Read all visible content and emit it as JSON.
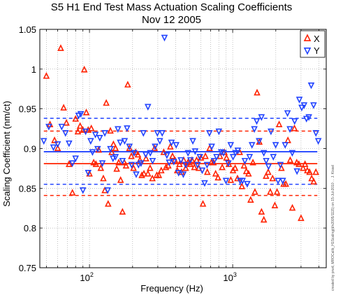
{
  "chart_data": {
    "type": "scatter",
    "title": "S5 H1 End Test Mass Actuation Scaling Coefficients",
    "subtitle": "Nov 12 2005",
    "xlabel": "Frequency (Hz)",
    "ylabel": "Scaling Coefficient (nm/ct)",
    "x_scale": "log",
    "xlim": [
      45,
      4500
    ],
    "ylim": [
      0.75,
      1.05
    ],
    "y_ticks": [
      "0.75",
      "0.8",
      "0.85",
      "0.9",
      "0.95",
      "1",
      "1.05"
    ],
    "x_ticks": [
      {
        "value": 100,
        "base": "10",
        "exp": "2"
      },
      {
        "value": 1000,
        "base": "10",
        "exp": "3"
      }
    ],
    "grid": true,
    "legend_position": "top-right",
    "side_note": "created by prwd, MROCalib_H1Scaling(d/v2005/1115) on 15-Jul-2010 ... J. Kissel",
    "series": [
      {
        "name": "X",
        "color": "#ff2200",
        "marker": "triangle-up",
        "mean": 0.881,
        "band": [
          0.841,
          0.922
        ],
        "points": [
          [
            50,
            0.991
          ],
          [
            53,
            0.93
          ],
          [
            57,
            0.91
          ],
          [
            60,
            0.9
          ],
          [
            63,
            1.026
          ],
          [
            66,
            0.951
          ],
          [
            69,
            0.932
          ],
          [
            72,
            0.88
          ],
          [
            76,
            0.844
          ],
          [
            80,
            0.937
          ],
          [
            83,
            0.921
          ],
          [
            86,
            0.928
          ],
          [
            90,
            0.923
          ],
          [
            92,
            0.999
          ],
          [
            95,
            0.945
          ],
          [
            98,
            0.923
          ],
          [
            100,
            0.868
          ],
          [
            103,
            0.925
          ],
          [
            107,
            0.882
          ],
          [
            111,
            0.88
          ],
          [
            116,
            0.898
          ],
          [
            120,
            0.875
          ],
          [
            125,
            0.862
          ],
          [
            128,
            0.847
          ],
          [
            131,
            0.957
          ],
          [
            135,
            0.83
          ],
          [
            140,
            0.922
          ],
          [
            143,
            0.895
          ],
          [
            147,
            0.905
          ],
          [
            152,
            0.9
          ],
          [
            155,
            0.874
          ],
          [
            160,
            0.882
          ],
          [
            165,
            0.86
          ],
          [
            170,
            0.82
          ],
          [
            175,
            0.882
          ],
          [
            180,
            0.878
          ],
          [
            185,
            0.98
          ],
          [
            190,
            0.9
          ],
          [
            196,
            0.89
          ],
          [
            203,
            0.875
          ],
          [
            210,
            0.895
          ],
          [
            218,
            0.892
          ],
          [
            225,
            0.885
          ],
          [
            232,
            0.866
          ],
          [
            240,
            0.868
          ],
          [
            248,
            0.887
          ],
          [
            256,
            0.868
          ],
          [
            265,
            0.875
          ],
          [
            275,
            0.862
          ],
          [
            285,
            0.9
          ],
          [
            295,
            0.866
          ],
          [
            305,
            0.866
          ],
          [
            317,
            0.872
          ],
          [
            330,
            0.895
          ],
          [
            342,
            0.876
          ],
          [
            355,
            0.878
          ],
          [
            367,
            0.902
          ],
          [
            380,
            0.89
          ],
          [
            395,
            0.885
          ],
          [
            410,
            0.872
          ],
          [
            425,
            0.88
          ],
          [
            440,
            0.87
          ],
          [
            455,
            0.885
          ],
          [
            470,
            0.875
          ],
          [
            487,
            0.882
          ],
          [
            505,
            0.88
          ],
          [
            520,
            0.885
          ],
          [
            540,
            0.876
          ],
          [
            560,
            0.885
          ],
          [
            580,
            0.875
          ],
          [
            600,
            0.888
          ],
          [
            620,
            0.83
          ],
          [
            645,
            0.89
          ],
          [
            665,
            0.87
          ],
          [
            690,
            0.9
          ],
          [
            710,
            0.882
          ],
          [
            735,
            0.882
          ],
          [
            760,
            0.868
          ],
          [
            790,
            0.863
          ],
          [
            815,
            0.89
          ],
          [
            845,
            0.876
          ],
          [
            875,
            0.895
          ],
          [
            905,
            0.888
          ],
          [
            940,
            0.88
          ],
          [
            970,
            0.86
          ],
          [
            1005,
            0.872
          ],
          [
            1040,
            0.875
          ],
          [
            1080,
            0.862
          ],
          [
            1120,
            0.895
          ],
          [
            1160,
            0.852
          ],
          [
            1200,
            0.878
          ],
          [
            1245,
            0.871
          ],
          [
            1290,
            0.868
          ],
          [
            1335,
            0.835
          ],
          [
            1385,
            0.882
          ],
          [
            1430,
            0.845
          ],
          [
            1480,
            0.97
          ],
          [
            1535,
            0.908
          ],
          [
            1590,
            0.82
          ],
          [
            1650,
            0.81
          ],
          [
            1710,
            0.865
          ],
          [
            1770,
            0.87
          ],
          [
            1830,
            0.845
          ],
          [
            1900,
            0.862
          ],
          [
            1970,
            0.828
          ],
          [
            2040,
            0.845
          ],
          [
            2110,
            0.93
          ],
          [
            2190,
            0.875
          ],
          [
            2270,
            0.855
          ],
          [
            2350,
            0.855
          ],
          [
            2430,
            0.91
          ],
          [
            2520,
            0.885
          ],
          [
            2610,
            0.825
          ],
          [
            2700,
            0.925
          ],
          [
            2800,
            0.882
          ],
          [
            2900,
            0.88
          ],
          [
            3000,
            0.812
          ],
          [
            3100,
            0.875
          ],
          [
            3200,
            0.88
          ],
          [
            3320,
            0.872
          ],
          [
            3440,
            0.87
          ],
          [
            3560,
            0.862
          ],
          [
            3680,
            0.858
          ],
          [
            3810,
            0.87
          ]
        ]
      },
      {
        "name": "Y",
        "color": "#2244ff",
        "marker": "triangle-down",
        "mean": 0.896,
        "band": [
          0.855,
          0.938
        ],
        "points": [
          [
            48,
            0.91
          ],
          [
            52,
            0.928
          ],
          [
            56,
            0.902
          ],
          [
            60,
            0.906
          ],
          [
            64,
            0.928
          ],
          [
            68,
            0.92
          ],
          [
            72,
            0.907
          ],
          [
            76,
            0.882
          ],
          [
            80,
            0.888
          ],
          [
            84,
            0.942
          ],
          [
            87,
            0.944
          ],
          [
            90,
            0.848
          ],
          [
            94,
            0.922
          ],
          [
            98,
            0.87
          ],
          [
            102,
            0.91
          ],
          [
            105,
            0.896
          ],
          [
            110,
            0.918
          ],
          [
            114,
            0.9
          ],
          [
            118,
            0.914
          ],
          [
            123,
            0.882
          ],
          [
            128,
            0.92
          ],
          [
            134,
            0.848
          ],
          [
            140,
            0.9
          ],
          [
            146,
            0.888
          ],
          [
            152,
            0.89
          ],
          [
            158,
            0.925
          ],
          [
            164,
            0.908
          ],
          [
            170,
            0.885
          ],
          [
            176,
            0.91
          ],
          [
            183,
            0.926
          ],
          [
            190,
            0.903
          ],
          [
            197,
            0.88
          ],
          [
            205,
            0.895
          ],
          [
            212,
            0.868
          ],
          [
            220,
            0.88
          ],
          [
            229,
            0.882
          ],
          [
            238,
            0.92
          ],
          [
            247,
            0.893
          ],
          [
            256,
            0.953
          ],
          [
            266,
            0.895
          ],
          [
            276,
            0.885
          ],
          [
            287,
            0.903
          ],
          [
            298,
            0.92
          ],
          [
            310,
            0.91
          ],
          [
            322,
            0.92
          ],
          [
            334,
            1.04
          ],
          [
            347,
            0.892
          ],
          [
            360,
            0.883
          ],
          [
            374,
            0.908
          ],
          [
            388,
            0.884
          ],
          [
            403,
            0.905
          ],
          [
            419,
            0.87
          ],
          [
            435,
            0.886
          ],
          [
            452,
            0.868
          ],
          [
            470,
            0.88
          ],
          [
            488,
            0.895
          ],
          [
            507,
            0.886
          ],
          [
            527,
            0.91
          ],
          [
            547,
            0.897
          ],
          [
            568,
            0.88
          ],
          [
            590,
            0.89
          ],
          [
            613,
            0.873
          ],
          [
            637,
            0.857
          ],
          [
            662,
            0.88
          ],
          [
            688,
            0.92
          ],
          [
            714,
            0.903
          ],
          [
            742,
            0.885
          ],
          [
            771,
            0.89
          ],
          [
            801,
            0.922
          ],
          [
            832,
            0.896
          ],
          [
            864,
            0.895
          ],
          [
            898,
            0.86
          ],
          [
            933,
            0.882
          ],
          [
            969,
            0.905
          ],
          [
            1006,
            0.89
          ],
          [
            1045,
            0.895
          ],
          [
            1086,
            0.898
          ],
          [
            1128,
            0.86
          ],
          [
            1172,
            0.86
          ],
          [
            1217,
            0.885
          ],
          [
            1264,
            0.856
          ],
          [
            1313,
            0.89
          ],
          [
            1364,
            0.905
          ],
          [
            1417,
            0.925
          ],
          [
            1472,
            0.935
          ],
          [
            1529,
            0.91
          ],
          [
            1589,
            0.94
          ],
          [
            1650,
            0.895
          ],
          [
            1714,
            0.885
          ],
          [
            1781,
            0.878
          ],
          [
            1850,
            0.922
          ],
          [
            1922,
            0.89
          ],
          [
            1996,
            0.905
          ],
          [
            2074,
            0.86
          ],
          [
            2154,
            0.88
          ],
          [
            2238,
            0.86
          ],
          [
            2325,
            0.905
          ],
          [
            2415,
            0.945
          ],
          [
            2509,
            0.925
          ],
          [
            2606,
            0.895
          ],
          [
            2707,
            0.935
          ],
          [
            2812,
            0.872
          ],
          [
            2921,
            0.962
          ],
          [
            3035,
            0.952
          ],
          [
            3153,
            0.955
          ],
          [
            3275,
            0.938
          ],
          [
            3402,
            0.94
          ],
          [
            3534,
            0.98
          ],
          [
            3671,
            0.955
          ],
          [
            3813,
            0.92
          ],
          [
            3961,
            0.91
          ]
        ]
      }
    ]
  }
}
